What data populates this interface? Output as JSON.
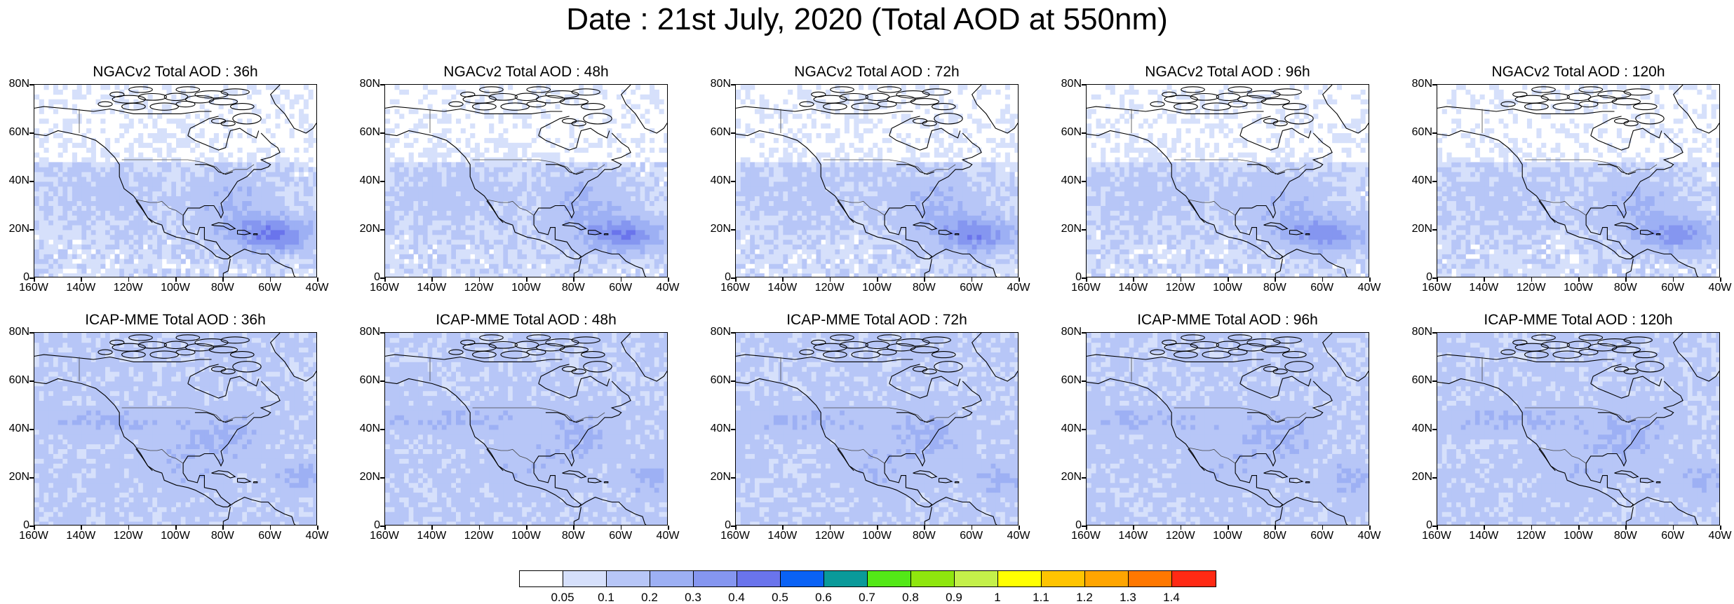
{
  "title": "Date : 21st July, 2020 (Total AOD at 550nm)",
  "lat_labels": [
    "80N",
    "60N",
    "40N",
    "20N",
    "0"
  ],
  "lon_labels": [
    "160W",
    "140W",
    "120W",
    "100W",
    "80W",
    "60W",
    "40W"
  ],
  "rows": [
    {
      "model": "NGACv2",
      "panels": [
        {
          "title": "NGACv2 Total AOD : 36h",
          "forecast_hour": 36,
          "pattern": "ngac",
          "intensity": 1.0
        },
        {
          "title": "NGACv2 Total AOD : 48h",
          "forecast_hour": 48,
          "pattern": "ngac",
          "intensity": 0.9
        },
        {
          "title": "NGACv2 Total AOD : 72h",
          "forecast_hour": 72,
          "pattern": "ngac",
          "intensity": 0.85
        },
        {
          "title": "NGACv2 Total AOD : 96h",
          "forecast_hour": 96,
          "pattern": "ngac",
          "intensity": 0.8
        },
        {
          "title": "NGACv2 Total AOD : 120h",
          "forecast_hour": 120,
          "pattern": "ngac",
          "intensity": 0.75
        }
      ]
    },
    {
      "model": "ICAP-MME",
      "panels": [
        {
          "title": "ICAP-MME Total AOD : 36h",
          "forecast_hour": 36,
          "pattern": "icap",
          "intensity": 0.8
        },
        {
          "title": "ICAP-MME Total AOD : 48h",
          "forecast_hour": 48,
          "pattern": "icap",
          "intensity": 0.85
        },
        {
          "title": "ICAP-MME Total AOD : 72h",
          "forecast_hour": 72,
          "pattern": "icap",
          "intensity": 0.9
        },
        {
          "title": "ICAP-MME Total AOD : 96h",
          "forecast_hour": 96,
          "pattern": "icap",
          "intensity": 0.85
        },
        {
          "title": "ICAP-MME Total AOD : 120h",
          "forecast_hour": 120,
          "pattern": "icap",
          "intensity": 0.8
        }
      ]
    }
  ],
  "colorbar": {
    "labels": [
      "0.05",
      "0.1",
      "0.2",
      "0.3",
      "0.4",
      "0.5",
      "0.6",
      "0.7",
      "0.8",
      "0.9",
      "1",
      "1.1",
      "1.2",
      "1.3",
      "1.4"
    ],
    "colors": [
      "#ffffff",
      "#d6e0fb",
      "#b7c6f7",
      "#9db0f4",
      "#8596f0",
      "#6a74ec",
      "#0a62f5",
      "#0a9a9a",
      "#53e817",
      "#8fe60e",
      "#c4f04a",
      "#ffff00",
      "#ffc400",
      "#ffa500",
      "#ff7800",
      "#ff2a14"
    ]
  }
}
